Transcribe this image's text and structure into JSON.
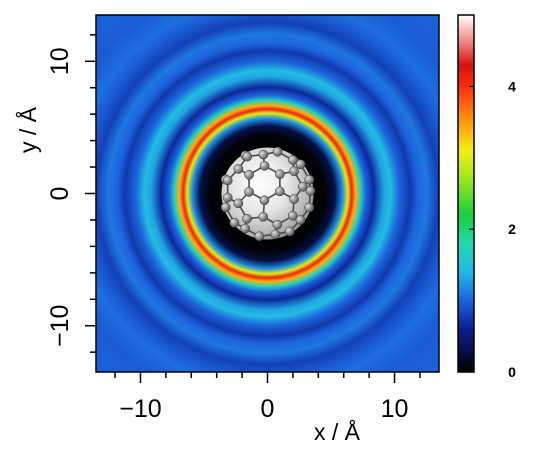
{
  "chart_data": [
    {
      "type": "heatmap",
      "title": "",
      "xlabel": "x / Å",
      "ylabel": "y / Å",
      "xlim": [
        -13.5,
        13.5
      ],
      "ylim": [
        -13.5,
        13.5
      ],
      "xticks_major": [
        -10,
        0,
        10
      ],
      "yticks_major": [
        -10,
        0,
        10
      ],
      "xticklabels": [
        "−10",
        "0",
        "10"
      ],
      "yticklabels": [
        "−10",
        "0",
        "10"
      ],
      "minor_tick_step": 2,
      "grid": false,
      "radial_profile": {
        "r": [
          0,
          3.5,
          4.5,
          5.2,
          5.8,
          6.2,
          6.5,
          6.8,
          7.2,
          7.6,
          8.2,
          9.0,
          9.5,
          10.2,
          11.0,
          11.6,
          12.3,
          13.2,
          14.2,
          15.0,
          16.5,
          19.5
        ],
        "value": [
          0,
          0,
          0.05,
          0.3,
          1.2,
          3.0,
          4.1,
          3.4,
          1.7,
          1.0,
          0.65,
          1.3,
          1.45,
          1.0,
          0.75,
          1.0,
          1.1,
          0.8,
          0.95,
          1.05,
          0.95,
          1.0
        ]
      },
      "molecule": {
        "name": "C60 fullerene",
        "center": [
          0,
          0
        ],
        "radius": 3.55
      }
    },
    {
      "type": "colorbar",
      "range": [
        0,
        5
      ],
      "ticks": [
        0,
        2,
        4
      ],
      "ticklabels": [
        "0",
        "2",
        "4"
      ],
      "colormap": [
        {
          "v": 0.0,
          "color": "#000000"
        },
        {
          "v": 0.6,
          "color": "#0a1f8f"
        },
        {
          "v": 1.0,
          "color": "#1c63dd"
        },
        {
          "v": 1.4,
          "color": "#22b8e8"
        },
        {
          "v": 1.8,
          "color": "#23d9b0"
        },
        {
          "v": 2.2,
          "color": "#19cf3c"
        },
        {
          "v": 2.7,
          "color": "#9be71e"
        },
        {
          "v": 3.1,
          "color": "#f4ef12"
        },
        {
          "v": 3.5,
          "color": "#ff9a0c"
        },
        {
          "v": 4.0,
          "color": "#ff2d10"
        },
        {
          "v": 4.3,
          "color": "#d21010"
        },
        {
          "v": 4.6,
          "color": "#f07d7d"
        },
        {
          "v": 5.0,
          "color": "#ffffff"
        }
      ]
    }
  ]
}
